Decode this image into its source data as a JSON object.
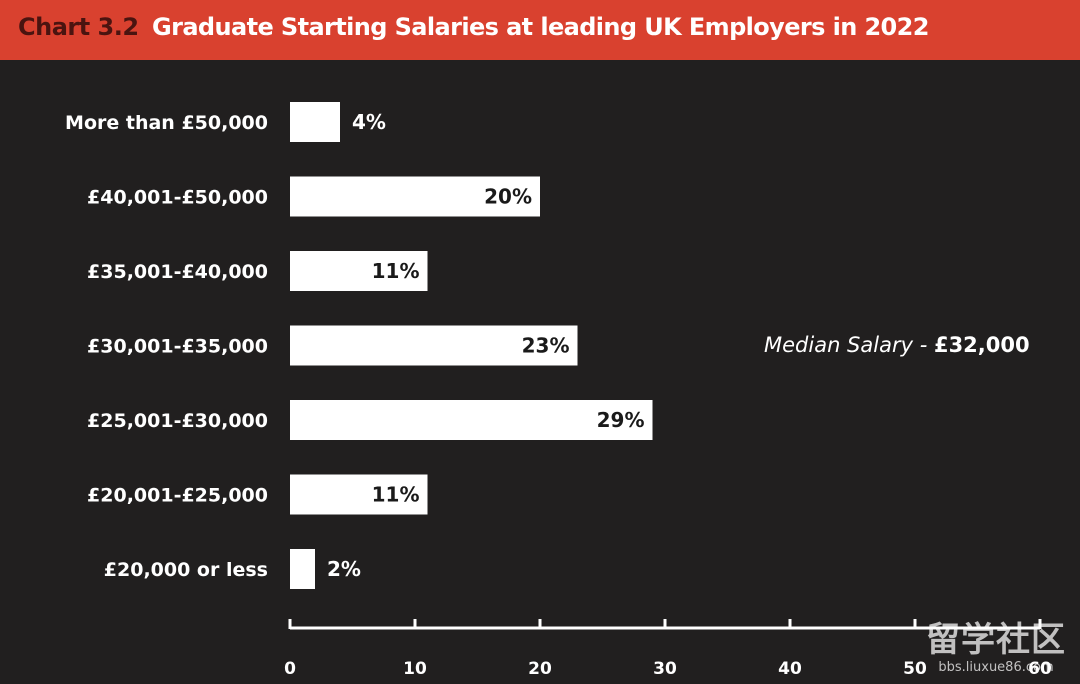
{
  "header": {
    "chart_number": "Chart 3.2",
    "title": "Graduate Starting Salaries at leading UK Employers in 2022"
  },
  "annotation": {
    "median_prefix": "Median Salary - ",
    "median_value": "£32,000"
  },
  "watermark": {
    "logo": "留学社区",
    "url": "bbs.liuxue86.com"
  },
  "colors": {
    "title_bar": "#d9412f",
    "background": "#211f1f",
    "bar": "#ffffff",
    "chart_number": "#4a1410"
  },
  "chart_data": {
    "type": "bar",
    "orientation": "horizontal",
    "title": "Graduate Starting Salaries at leading UK Employers in 2022",
    "categories": [
      "More than £50,000",
      "£40,001-£50,000",
      "£35,001-£40,000",
      "£30,001-£35,000",
      "£25,001-£30,000",
      "£20,001-£25,000",
      "£20,000 or less"
    ],
    "values": [
      4,
      20,
      11,
      23,
      29,
      11,
      2
    ],
    "value_labels": [
      "4%",
      "20%",
      "11%",
      "23%",
      "29%",
      "11%",
      "2%"
    ],
    "xlim": [
      0,
      60
    ],
    "xticks": [
      0,
      10,
      20,
      30,
      40,
      50,
      60
    ],
    "xlabel": "",
    "ylabel": "",
    "grid": false,
    "legend": "none"
  }
}
